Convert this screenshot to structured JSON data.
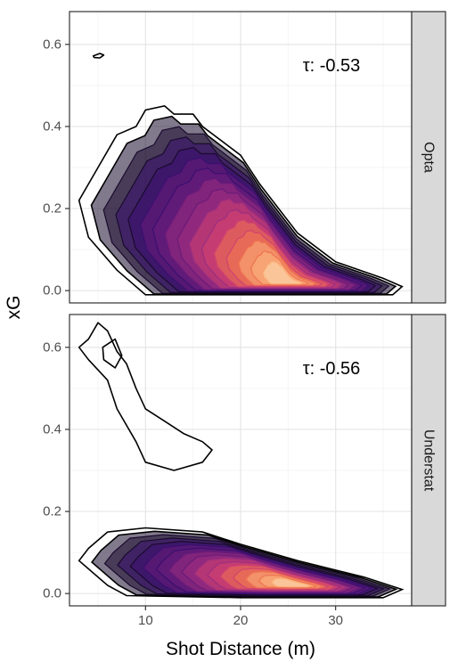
{
  "chart_data": {
    "type": "contour-density",
    "facet_variable": "source",
    "x_axis": {
      "label": "Shot Distance (m)",
      "range": [
        2,
        38
      ],
      "ticks": [
        10,
        20,
        30
      ],
      "tick_labels": [
        "10",
        "20",
        "30"
      ]
    },
    "y_axis": {
      "label": "xG",
      "range": [
        -0.03,
        0.68
      ],
      "ticks": [
        0.0,
        0.2,
        0.4,
        0.6
      ],
      "tick_labels": [
        "0.0",
        "0.2",
        "0.4",
        "0.6"
      ]
    },
    "grid": true,
    "theme": "bw",
    "color_palette": [
      "#1a0b2e",
      "#3b0f70",
      "#6a1b7a",
      "#9c2e7f",
      "#d1426f",
      "#f07451",
      "#fbb27a",
      "#fde2b8"
    ],
    "panels": [
      {
        "strip_label": "Opta",
        "annotation": "τ: -0.53",
        "density_peak": {
          "x": 25,
          "y": 0.02
        },
        "outer_contour": [
          [
            9,
            0.4
          ],
          [
            10,
            0.44
          ],
          [
            12,
            0.45
          ],
          [
            13,
            0.43
          ],
          [
            15,
            0.43
          ],
          [
            16,
            0.4
          ],
          [
            20,
            0.33
          ],
          [
            22,
            0.26
          ],
          [
            26,
            0.14
          ],
          [
            30,
            0.07
          ],
          [
            35,
            0.03
          ],
          [
            37,
            0.01
          ],
          [
            36,
            -0.01
          ],
          [
            25,
            -0.01
          ],
          [
            10,
            -0.01
          ],
          [
            7,
            0.05
          ],
          [
            4,
            0.13
          ],
          [
            3,
            0.22
          ],
          [
            5,
            0.3
          ],
          [
            7,
            0.38
          ]
        ],
        "isolated_contours": [
          [
            [
              4.5,
              0.572
            ],
            [
              5.2,
              0.578
            ],
            [
              5.6,
              0.574
            ],
            [
              5.2,
              0.567
            ],
            [
              4.6,
              0.568
            ]
          ]
        ]
      },
      {
        "strip_label": "Understat",
        "annotation": "τ: -0.56",
        "density_peak": {
          "x": 26,
          "y": 0.02
        },
        "outer_contour": [
          [
            4,
            0.11
          ],
          [
            6,
            0.15
          ],
          [
            10,
            0.16
          ],
          [
            16,
            0.15
          ],
          [
            20,
            0.12
          ],
          [
            26,
            0.08
          ],
          [
            33,
            0.04
          ],
          [
            37,
            0.01
          ],
          [
            35,
            -0.01
          ],
          [
            20,
            -0.01
          ],
          [
            8,
            -0.005
          ],
          [
            6,
            0.02
          ],
          [
            3,
            0.08
          ]
        ],
        "isolated_contours": [
          [
            [
              4,
              0.62
            ],
            [
              5,
              0.66
            ],
            [
              6,
              0.64
            ],
            [
              7,
              0.59
            ],
            [
              8,
              0.56
            ],
            [
              9,
              0.5
            ],
            [
              10,
              0.45
            ],
            [
              12,
              0.42
            ],
            [
              14,
              0.39
            ],
            [
              16,
              0.37
            ],
            [
              17,
              0.35
            ],
            [
              16,
              0.32
            ],
            [
              13,
              0.3
            ],
            [
              10,
              0.32
            ],
            [
              9,
              0.37
            ],
            [
              7,
              0.45
            ],
            [
              6,
              0.52
            ],
            [
              4,
              0.57
            ],
            [
              3,
              0.6
            ]
          ],
          [
            [
              5.5,
              0.6
            ],
            [
              6.8,
              0.62
            ],
            [
              7.5,
              0.58
            ],
            [
              6.8,
              0.55
            ],
            [
              5.6,
              0.57
            ]
          ]
        ]
      }
    ]
  }
}
